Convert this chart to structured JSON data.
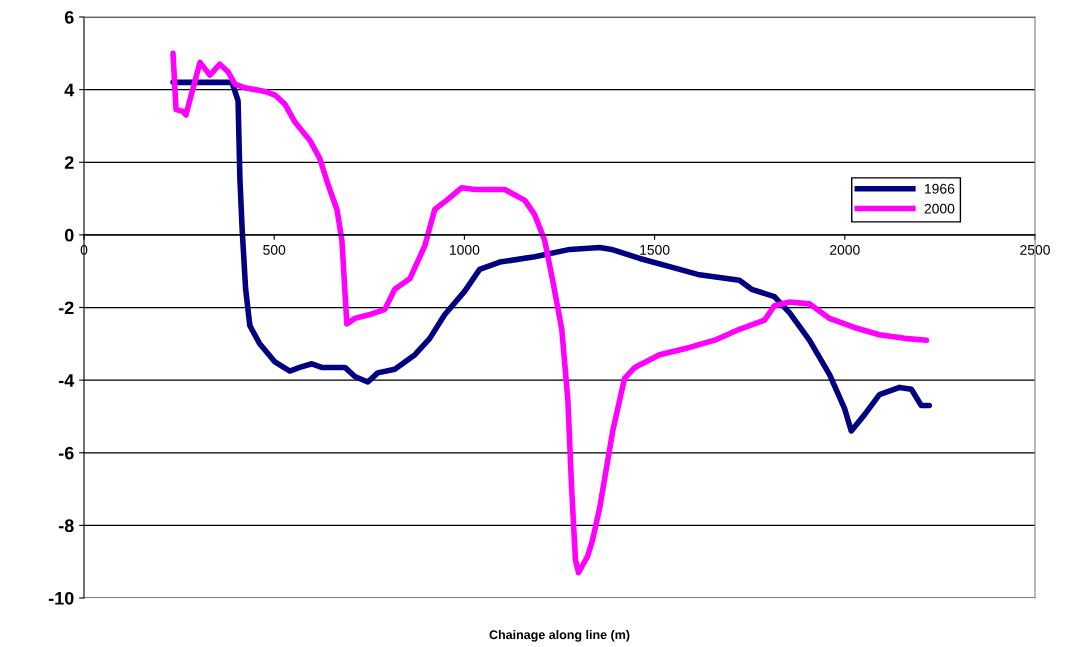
{
  "chart_data": {
    "type": "line",
    "xlabel": "Chainage along line (m)",
    "xlim": [
      0,
      2500
    ],
    "xticks": [
      0,
      500,
      1000,
      1500,
      2000,
      2500
    ],
    "ylim": [
      -10,
      6
    ],
    "yticks": [
      -10,
      -8,
      -6,
      -4,
      -2,
      0,
      2,
      4,
      6
    ],
    "grid": "y",
    "legend": "right",
    "marker": "none",
    "line_style": "solid",
    "series": [
      {
        "name": "1966",
        "color": "#000080",
        "x": [
          234,
          389,
          405,
          410,
          416,
          425,
          436,
          462,
          502,
          541,
          567,
          599,
          625,
          686,
          712,
          746,
          772,
          817,
          870,
          909,
          948,
          1001,
          1040,
          1093,
          1185,
          1277,
          1356,
          1387,
          1461,
          1566,
          1618,
          1723,
          1755,
          1815,
          1855,
          1907,
          1960,
          2000,
          2017,
          2052,
          2091,
          2144,
          2175,
          2201,
          2222
        ],
        "values": [
          4.2,
          4.2,
          3.7,
          1.5,
          0.1,
          -1.5,
          -2.5,
          -3.0,
          -3.5,
          -3.75,
          -3.65,
          -3.55,
          -3.65,
          -3.65,
          -3.9,
          -4.05,
          -3.8,
          -3.7,
          -3.3,
          -2.85,
          -2.2,
          -1.55,
          -0.95,
          -0.75,
          -0.6,
          -0.4,
          -0.35,
          -0.4,
          -0.65,
          -0.95,
          -1.1,
          -1.25,
          -1.5,
          -1.7,
          -2.15,
          -2.9,
          -3.85,
          -4.8,
          -5.4,
          -4.95,
          -4.4,
          -4.2,
          -4.25,
          -4.7,
          -4.7
        ]
      },
      {
        "name": "2000",
        "color": "#ff00ff",
        "x": [
          234,
          242,
          260,
          268,
          278,
          305,
          331,
          357,
          378,
          397,
          423,
          476,
          502,
          528,
          555,
          594,
          620,
          641,
          665,
          678,
          691,
          712,
          749,
          791,
          817,
          857,
          896,
          922,
          953,
          993,
          1027,
          1106,
          1159,
          1185,
          1211,
          1232,
          1256,
          1272,
          1282,
          1292,
          1300,
          1324,
          1337,
          1356,
          1377,
          1390,
          1421,
          1448,
          1513,
          1592,
          1658,
          1723,
          1789,
          1815,
          1855,
          1907,
          1960,
          2025,
          2091,
          2157,
          2215
        ],
        "values": [
          5.0,
          3.45,
          3.4,
          3.3,
          3.7,
          4.75,
          4.4,
          4.7,
          4.5,
          4.15,
          4.05,
          3.95,
          3.85,
          3.6,
          3.1,
          2.6,
          2.1,
          1.4,
          0.7,
          -0.15,
          -2.45,
          -2.3,
          -2.2,
          -2.05,
          -1.5,
          -1.2,
          -0.3,
          0.7,
          0.95,
          1.3,
          1.25,
          1.25,
          0.95,
          0.55,
          -0.15,
          -1.25,
          -2.6,
          -4.55,
          -7.0,
          -8.95,
          -9.3,
          -8.85,
          -8.4,
          -7.5,
          -6.2,
          -5.4,
          -3.95,
          -3.65,
          -3.3,
          -3.1,
          -2.9,
          -2.6,
          -2.35,
          -1.95,
          -1.85,
          -1.9,
          -2.3,
          -2.55,
          -2.75,
          -2.85,
          -2.9
        ]
      }
    ]
  }
}
